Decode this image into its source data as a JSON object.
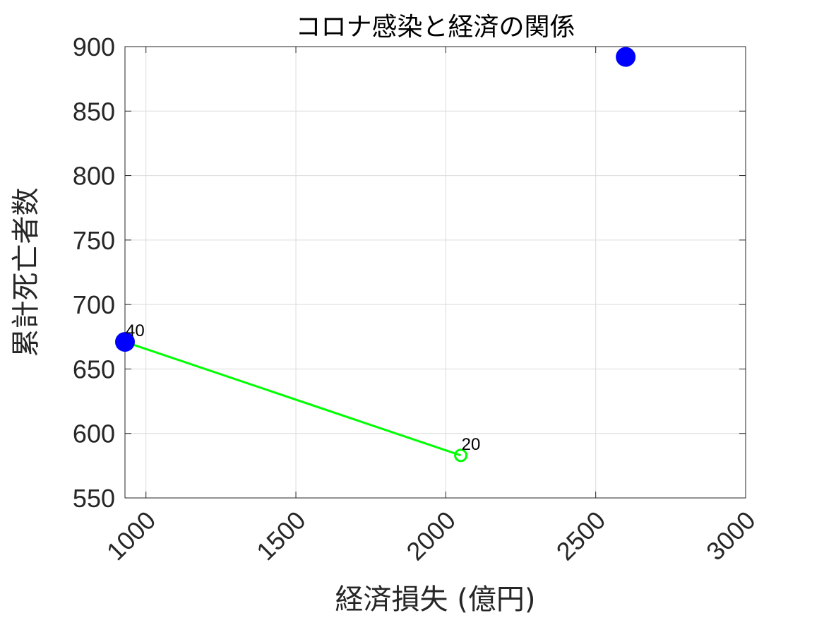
{
  "chart_data": {
    "type": "scatter",
    "title": "コロナ感染と経済の関係",
    "xlabel": "経済損失 (億円)",
    "ylabel": "累計死亡者数",
    "xlim": [
      930,
      3000
    ],
    "ylim": [
      550,
      900
    ],
    "xticks": [
      1000,
      1500,
      2000,
      2500,
      3000
    ],
    "yticks": [
      550,
      600,
      650,
      700,
      750,
      800,
      850,
      900
    ],
    "grid": true,
    "series": [
      {
        "type": "line",
        "color": "#00ff00",
        "points": [
          {
            "x": 930,
            "y": 671
          },
          {
            "x": 2050,
            "y": 583
          }
        ]
      },
      {
        "type": "marker",
        "marker": "open-circle",
        "color": "#00ff00",
        "points": [
          {
            "x": 2050,
            "y": 583,
            "label": "20"
          }
        ]
      },
      {
        "type": "marker",
        "marker": "filled-circle",
        "color": "#0000ff",
        "points": [
          {
            "x": 930,
            "y": 671,
            "label": "40"
          },
          {
            "x": 2600,
            "y": 892
          }
        ]
      }
    ]
  }
}
